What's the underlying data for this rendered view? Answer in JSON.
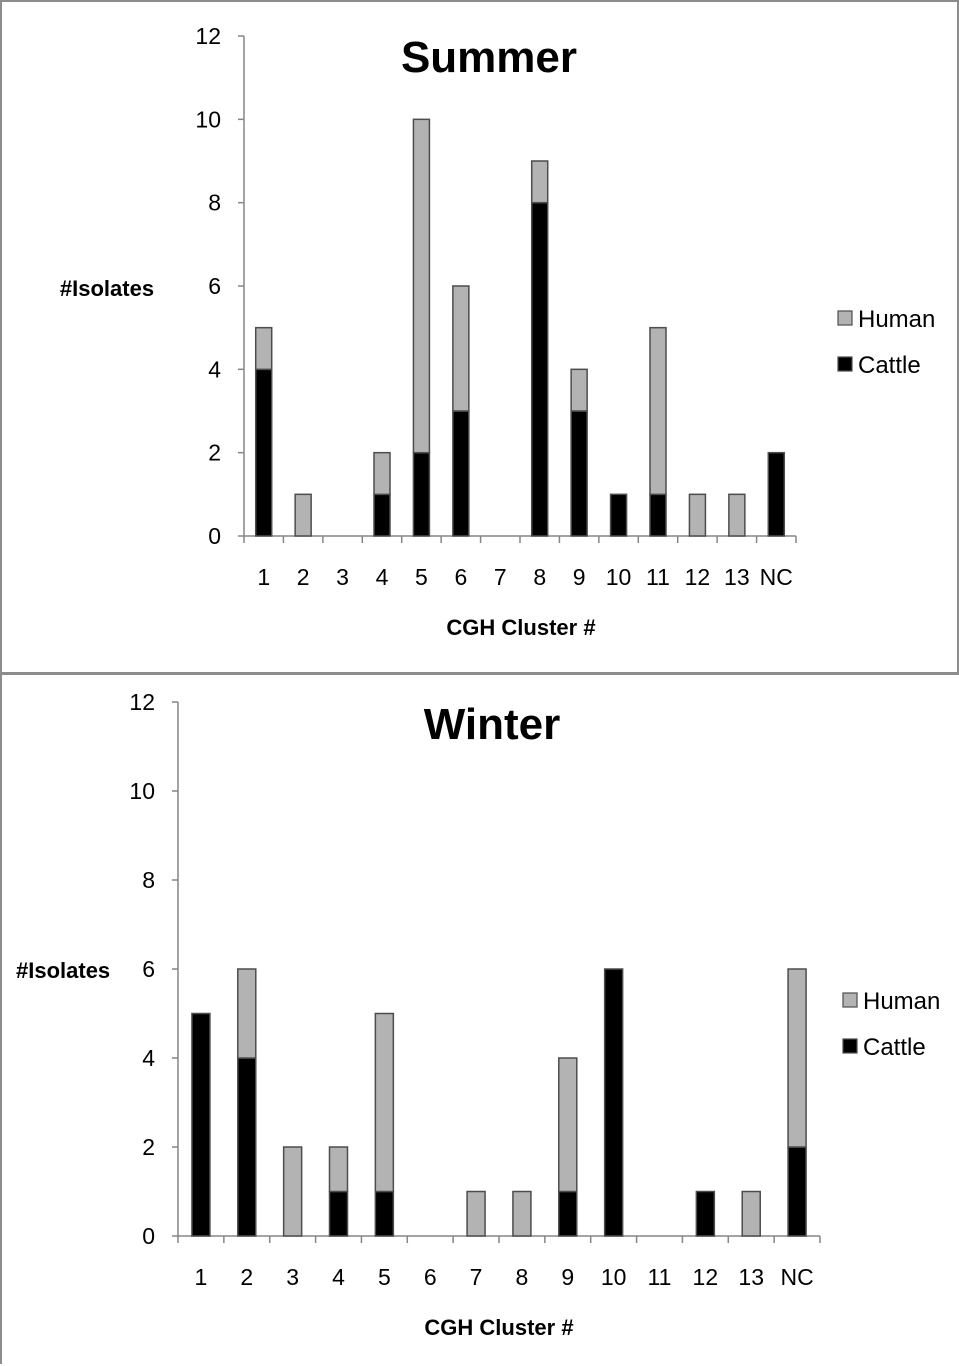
{
  "chart_data": [
    {
      "type": "bar",
      "stacked": true,
      "title": "Summer",
      "xlabel": "CGH Cluster #",
      "ylabel": "#Isolates",
      "ylim": [
        0,
        12
      ],
      "yticks": [
        0,
        2,
        4,
        6,
        8,
        10,
        12
      ],
      "categories": [
        "1",
        "2",
        "3",
        "4",
        "5",
        "6",
        "7",
        "8",
        "9",
        "10",
        "11",
        "12",
        "13",
        "NC"
      ],
      "series": [
        {
          "name": "Cattle",
          "color": "#000000",
          "values": [
            4,
            0,
            0,
            1,
            2,
            3,
            0,
            8,
            3,
            1,
            1,
            0,
            0,
            2
          ]
        },
        {
          "name": "Human",
          "color": "#b3b3b3",
          "values": [
            1,
            1,
            0,
            1,
            8,
            3,
            0,
            1,
            1,
            0,
            4,
            1,
            1,
            0
          ]
        }
      ],
      "legend_entries": [
        "Human",
        "Cattle"
      ],
      "legend_position": "right",
      "grid": false
    },
    {
      "type": "bar",
      "stacked": true,
      "title": "Winter",
      "xlabel": "CGH Cluster #",
      "ylabel": "#Isolates",
      "ylim": [
        0,
        12
      ],
      "yticks": [
        0,
        2,
        4,
        6,
        8,
        10,
        12
      ],
      "categories": [
        "1",
        "2",
        "3",
        "4",
        "5",
        "6",
        "7",
        "8",
        "9",
        "10",
        "11",
        "12",
        "13",
        "NC"
      ],
      "series": [
        {
          "name": "Cattle",
          "color": "#000000",
          "values": [
            5,
            4,
            0,
            1,
            1,
            0,
            0,
            0,
            1,
            6,
            0,
            1,
            0,
            2
          ]
        },
        {
          "name": "Human",
          "color": "#b3b3b3",
          "values": [
            0,
            2,
            2,
            1,
            4,
            0,
            1,
            1,
            3,
            0,
            0,
            0,
            1,
            4
          ]
        }
      ],
      "legend_entries": [
        "Human",
        "Cattle"
      ],
      "legend_position": "right",
      "grid": false
    }
  ]
}
